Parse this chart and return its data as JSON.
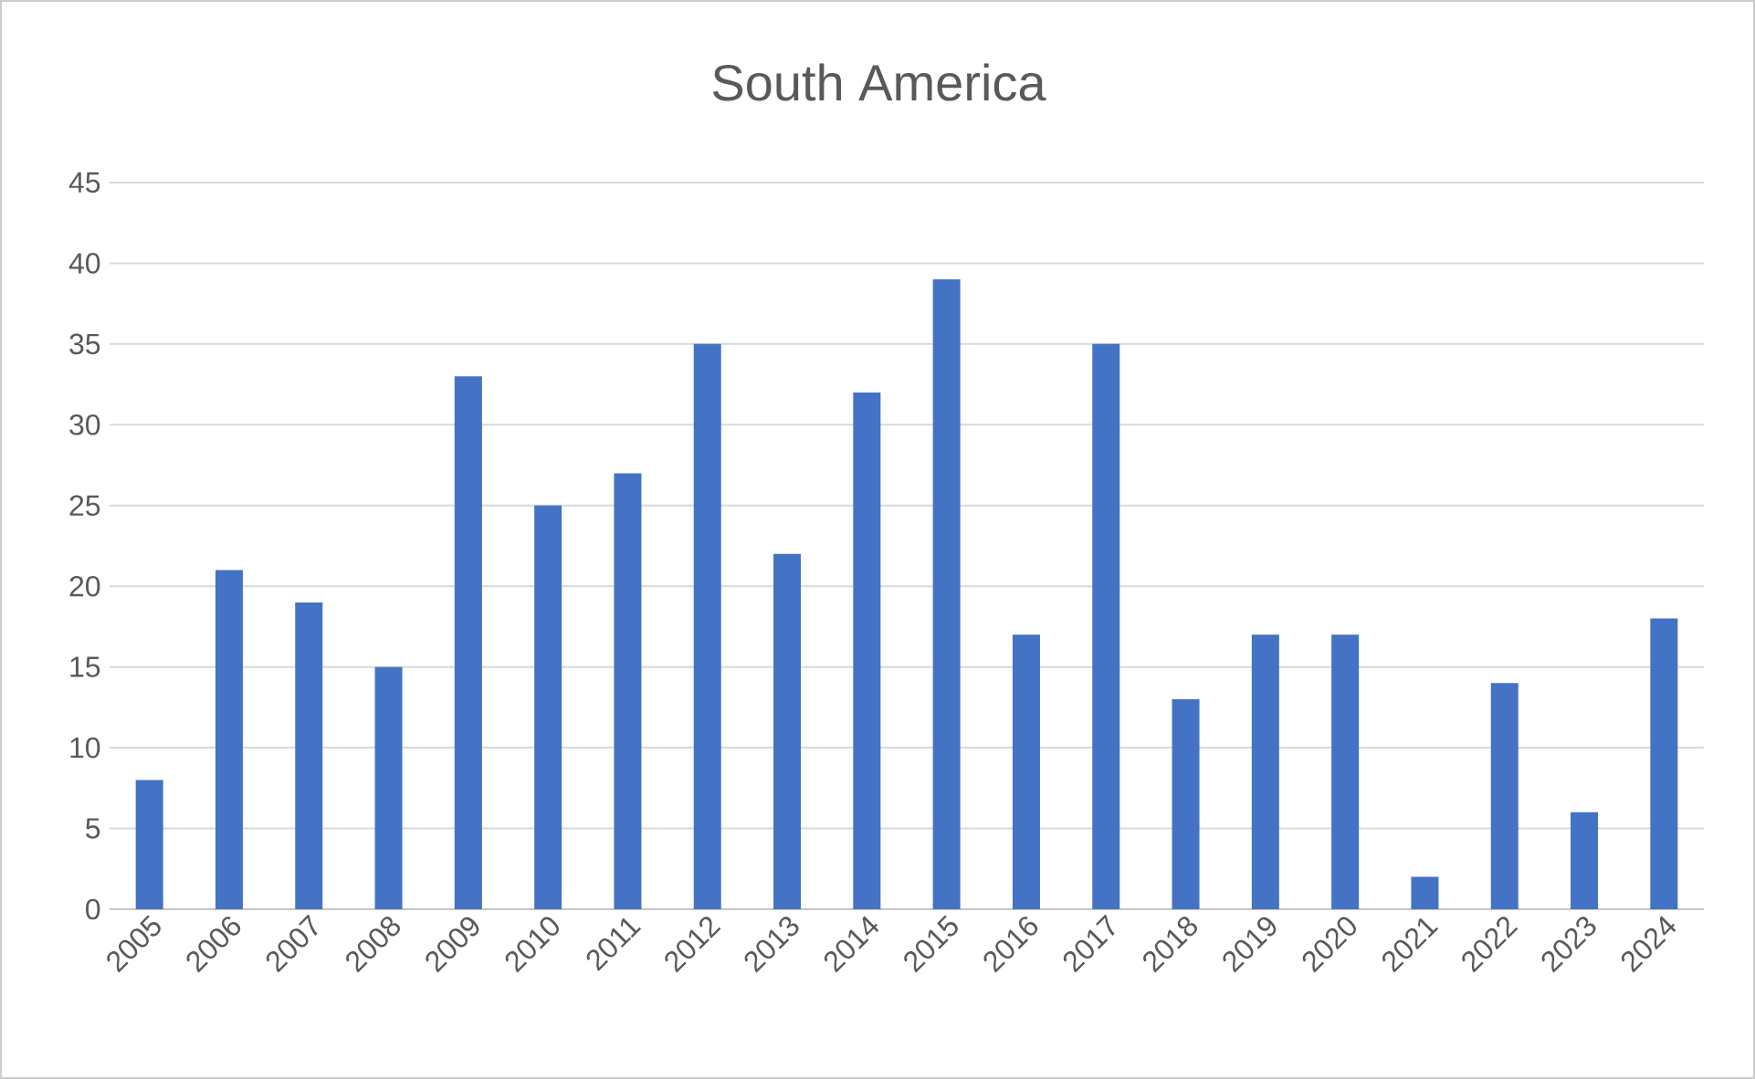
{
  "chart_data": {
    "type": "bar",
    "title": "South America",
    "categories": [
      "2005",
      "2006",
      "2007",
      "2008",
      "2009",
      "2010",
      "2011",
      "2012",
      "2013",
      "2014",
      "2015",
      "2016",
      "2017",
      "2018",
      "2019",
      "2020",
      "2021",
      "2022",
      "2023",
      "2024"
    ],
    "values": [
      8,
      21,
      19,
      15,
      33,
      25,
      27,
      35,
      22,
      32,
      39,
      17,
      35,
      13,
      17,
      17,
      2,
      14,
      6,
      18
    ],
    "color": "#4472c4",
    "ylim": [
      0,
      45
    ],
    "yticks": [
      0,
      5,
      10,
      15,
      20,
      25,
      30,
      35,
      40,
      45
    ],
    "grid": "y"
  }
}
